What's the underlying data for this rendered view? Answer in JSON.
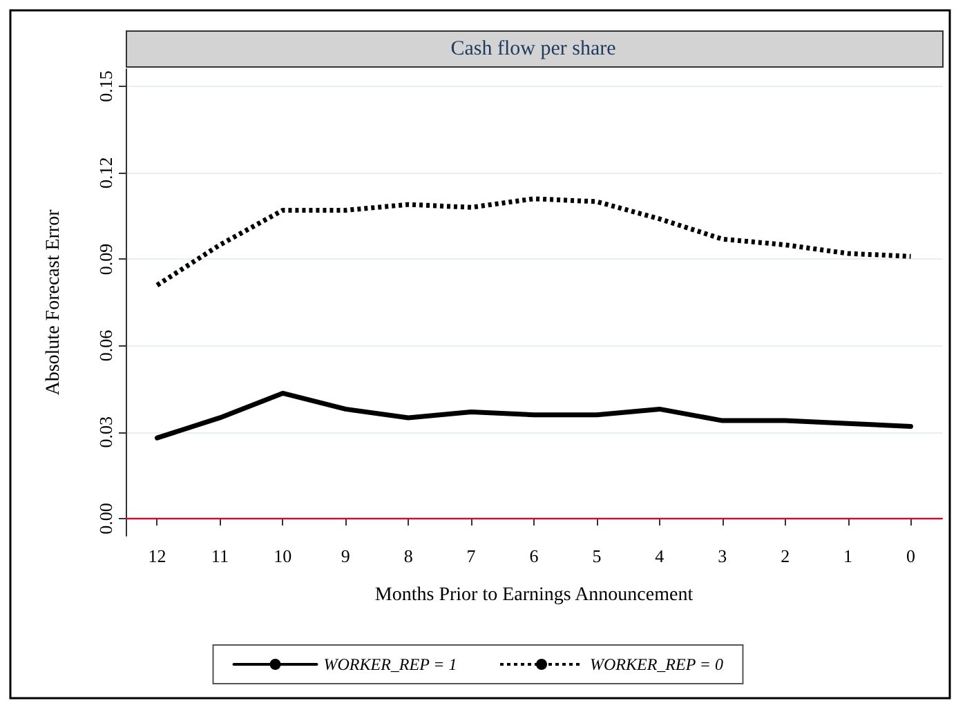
{
  "chart_data": {
    "type": "line",
    "title": "Cash flow per share",
    "xlabel": "Months Prior to Earnings Announcement",
    "ylabel": "Absolute Forecast Error",
    "categories": [
      "12",
      "11",
      "10",
      "9",
      "8",
      "7",
      "6",
      "5",
      "4",
      "3",
      "2",
      "1",
      "0"
    ],
    "series": [
      {
        "name": "WORKER_REP = 1",
        "color": "#000000",
        "line_style": "solid",
        "values": [
          0.028,
          0.035,
          0.0435,
          0.038,
          0.035,
          0.037,
          0.036,
          0.036,
          0.038,
          0.034,
          0.034,
          0.033,
          0.032
        ]
      },
      {
        "name": "WORKER_REP = 0",
        "color": "#000000",
        "line_style": "dotted",
        "values": [
          0.081,
          0.095,
          0.107,
          0.107,
          0.109,
          0.108,
          0.111,
          0.11,
          0.104,
          0.097,
          0.095,
          0.092,
          0.091
        ]
      }
    ],
    "ylim": [
      -0.006,
      0.156
    ],
    "yticks": [
      {
        "value": 0,
        "label": "0.00"
      },
      {
        "value": 0.03,
        "label": "0.03"
      },
      {
        "value": 0.06,
        "label": "0.06"
      },
      {
        "value": 0.09,
        "label": "0.09"
      },
      {
        "value": 0.12,
        "label": "0.12"
      },
      {
        "value": 0.15,
        "label": "0.15"
      }
    ],
    "ref_lines": [
      {
        "axis": "y",
        "value": 0,
        "color": "#c8102e"
      }
    ],
    "grid": "y",
    "legend": "bottom",
    "marker": "none"
  }
}
